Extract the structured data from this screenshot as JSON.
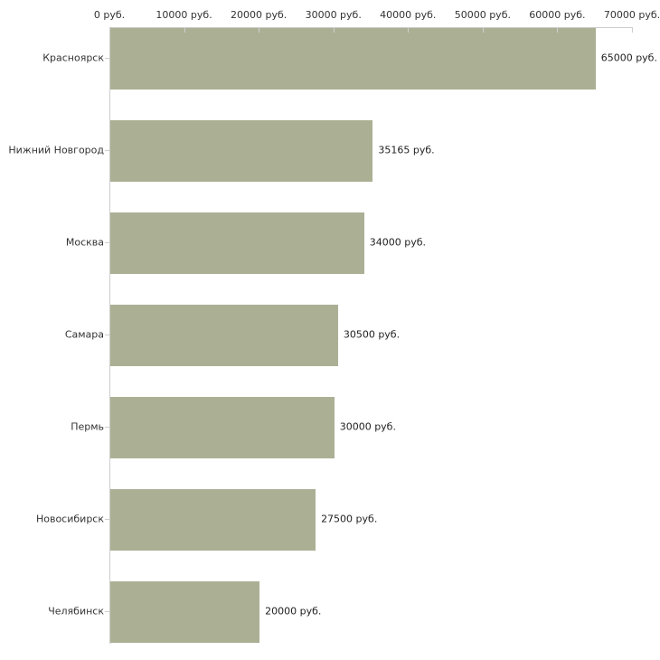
{
  "chart_data": {
    "type": "bar",
    "orientation": "horizontal",
    "title": "",
    "xlabel": "",
    "ylabel": "",
    "unit": "руб.",
    "xlim": [
      0,
      70000
    ],
    "grid": false,
    "legend": null,
    "x_tick_labels": [
      "0 руб.",
      "10000 руб.",
      "20000 руб.",
      "30000 руб.",
      "40000 руб.",
      "50000 руб.",
      "60000 руб.",
      "70000 руб."
    ],
    "x_tick_values": [
      0,
      10000,
      20000,
      30000,
      40000,
      50000,
      60000,
      70000
    ],
    "categories": [
      "Красноярск",
      "Нижний Новгород",
      "Москва",
      "Самара",
      "Пермь",
      "Новосибирск",
      "Челябинск"
    ],
    "values": [
      65000,
      35165,
      34000,
      30500,
      30000,
      27500,
      20000
    ],
    "value_labels": [
      "65000 руб.",
      "35165 руб.",
      "34000 руб.",
      "30500 руб.",
      "30000 руб.",
      "27500 руб.",
      "20000 руб."
    ],
    "colors": {
      "bar": "#abb094",
      "axis_line": "#cccccc",
      "tick_mark": "#cfcfcf",
      "label_text": "#333333",
      "value_text": "#222222",
      "background": "#ffffff"
    }
  }
}
